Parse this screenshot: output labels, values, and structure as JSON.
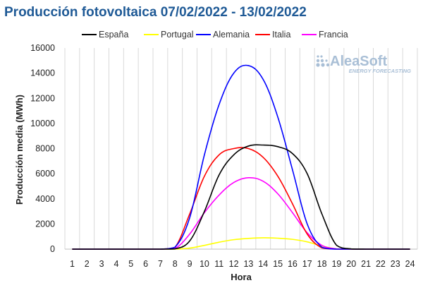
{
  "chart_data": {
    "type": "line",
    "title": "Producción fotovoltaica 07/02/2022 - 13/02/2022",
    "xlabel": "Hora",
    "ylabel": "Producción media (MWh)",
    "ylim": [
      0,
      16000
    ],
    "yticks": [
      0,
      2000,
      4000,
      6000,
      8000,
      10000,
      12000,
      14000,
      16000
    ],
    "x": [
      1,
      2,
      3,
      4,
      5,
      6,
      7,
      8,
      9,
      10,
      11,
      12,
      13,
      14,
      15,
      16,
      17,
      18,
      19,
      20,
      21,
      22,
      23,
      24
    ],
    "grid": "vertical",
    "legend": "top",
    "series": [
      {
        "name": "España",
        "color": "#000000",
        "values": [
          0,
          0,
          0,
          0,
          0,
          0,
          0,
          20,
          650,
          3000,
          5900,
          7500,
          8200,
          8280,
          8150,
          7600,
          6000,
          2800,
          300,
          20,
          0,
          0,
          0,
          0
        ]
      },
      {
        "name": "Portugal",
        "color": "#ffff00",
        "values": [
          0,
          0,
          0,
          0,
          0,
          0,
          0,
          0,
          80,
          300,
          550,
          750,
          850,
          900,
          870,
          780,
          580,
          250,
          20,
          0,
          0,
          0,
          0,
          0
        ]
      },
      {
        "name": "Alemania",
        "color": "#0000ff",
        "values": [
          0,
          0,
          0,
          0,
          0,
          0,
          0,
          150,
          2500,
          7500,
          11500,
          14000,
          14600,
          13500,
          10500,
          6300,
          2000,
          150,
          0,
          0,
          0,
          0,
          0,
          0
        ]
      },
      {
        "name": "Italia",
        "color": "#ff0000",
        "values": [
          0,
          0,
          0,
          0,
          0,
          0,
          0,
          150,
          2800,
          5800,
          7500,
          8000,
          8000,
          7300,
          5800,
          3600,
          1200,
          100,
          0,
          0,
          0,
          0,
          0,
          0
        ]
      },
      {
        "name": "Francia",
        "color": "#ff00ff",
        "values": [
          0,
          0,
          0,
          0,
          0,
          0,
          0,
          50,
          1200,
          2900,
          4300,
          5300,
          5680,
          5400,
          4400,
          2900,
          1300,
          300,
          20,
          0,
          0,
          0,
          0,
          0
        ]
      }
    ]
  },
  "logo": {
    "name": "AleaSoft",
    "tagline": "ENERGY FORECASTING"
  }
}
